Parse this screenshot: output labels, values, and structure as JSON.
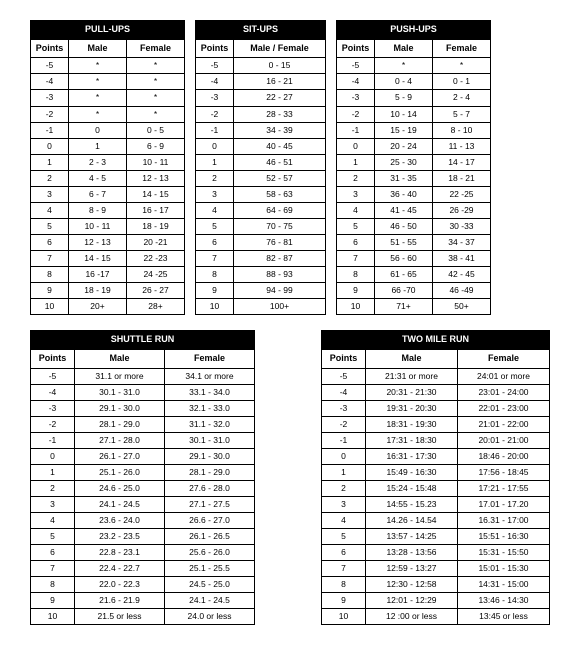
{
  "pullups": {
    "title": "PULL-UPS",
    "cols": [
      "Points",
      "Male",
      "Female"
    ],
    "rows": [
      [
        "-5",
        "*",
        "*"
      ],
      [
        "-4",
        "*",
        "*"
      ],
      [
        "-3",
        "*",
        "*"
      ],
      [
        "-2",
        "*",
        "*"
      ],
      [
        "-1",
        "0",
        "0 - 5"
      ],
      [
        "0",
        "1",
        "6 - 9"
      ],
      [
        "1",
        "2 - 3",
        "10 - 11"
      ],
      [
        "2",
        "4 - 5",
        "12 - 13"
      ],
      [
        "3",
        "6 - 7",
        "14 - 15"
      ],
      [
        "4",
        "8 - 9",
        "16 - 17"
      ],
      [
        "5",
        "10 - 11",
        "18 - 19"
      ],
      [
        "6",
        "12 - 13",
        "20 -21"
      ],
      [
        "7",
        "14 - 15",
        "22 -23"
      ],
      [
        "8",
        "16 -17",
        "24 -25"
      ],
      [
        "9",
        "18 - 19",
        "26 - 27"
      ],
      [
        "10",
        "20+",
        "28+"
      ]
    ]
  },
  "situps": {
    "title": "SIT-UPS",
    "cols": [
      "Points",
      "Male / Female"
    ],
    "rows": [
      [
        "-5",
        "0 - 15"
      ],
      [
        "-4",
        "16 - 21"
      ],
      [
        "-3",
        "22 - 27"
      ],
      [
        "-2",
        "28 - 33"
      ],
      [
        "-1",
        "34 - 39"
      ],
      [
        "0",
        "40 - 45"
      ],
      [
        "1",
        "46 - 51"
      ],
      [
        "2",
        "52 - 57"
      ],
      [
        "3",
        "58 - 63"
      ],
      [
        "4",
        "64 - 69"
      ],
      [
        "5",
        "70 - 75"
      ],
      [
        "6",
        "76 - 81"
      ],
      [
        "7",
        "82 - 87"
      ],
      [
        "8",
        "88 - 93"
      ],
      [
        "9",
        "94 - 99"
      ],
      [
        "10",
        "100+"
      ]
    ]
  },
  "pushups": {
    "title": "PUSH-UPS",
    "cols": [
      "Points",
      "Male",
      "Female"
    ],
    "rows": [
      [
        "-5",
        "*",
        "*"
      ],
      [
        "-4",
        "0 - 4",
        "0 - 1"
      ],
      [
        "-3",
        "5 - 9",
        "2 - 4"
      ],
      [
        "-2",
        "10 - 14",
        "5 - 7"
      ],
      [
        "-1",
        "15 - 19",
        "8 - 10"
      ],
      [
        "0",
        "20 - 24",
        "11 - 13"
      ],
      [
        "1",
        "25 - 30",
        "14 - 17"
      ],
      [
        "2",
        "31 - 35",
        "18 - 21"
      ],
      [
        "3",
        "36 - 40",
        "22 -25"
      ],
      [
        "4",
        "41 - 45",
        "26 -29"
      ],
      [
        "5",
        "46 - 50",
        "30 -33"
      ],
      [
        "6",
        "51 - 55",
        "34 - 37"
      ],
      [
        "7",
        "56 - 60",
        "38 - 41"
      ],
      [
        "8",
        "61 - 65",
        "42 - 45"
      ],
      [
        "9",
        "66 -70",
        "46 -49"
      ],
      [
        "10",
        "71+",
        "50+"
      ]
    ]
  },
  "shuttle": {
    "title": "SHUTTLE RUN",
    "cols": [
      "Points",
      "Male",
      "Female"
    ],
    "rows": [
      [
        "-5",
        "31.1 or more",
        "34.1 or more"
      ],
      [
        "-4",
        "30.1 - 31.0",
        "33.1 - 34.0"
      ],
      [
        "-3",
        "29.1 - 30.0",
        "32.1 - 33.0"
      ],
      [
        "-2",
        "28.1 - 29.0",
        "31.1 - 32.0"
      ],
      [
        "-1",
        "27.1 - 28.0",
        "30.1 - 31.0"
      ],
      [
        "0",
        "26.1 - 27.0",
        "29.1 - 30.0"
      ],
      [
        "1",
        "25.1 - 26.0",
        "28.1 - 29.0"
      ],
      [
        "2",
        "24.6 - 25.0",
        "27.6 - 28.0"
      ],
      [
        "3",
        "24.1 - 24.5",
        "27.1 - 27.5"
      ],
      [
        "4",
        "23.6 - 24.0",
        "26.6 - 27.0"
      ],
      [
        "5",
        "23.2 - 23.5",
        "26.1 - 26.5"
      ],
      [
        "6",
        "22.8 - 23.1",
        "25.6 - 26.0"
      ],
      [
        "7",
        "22.4 - 22.7",
        "25.1 - 25.5"
      ],
      [
        "8",
        "22.0 - 22.3",
        "24.5 - 25.0"
      ],
      [
        "9",
        "21.6 - 21.9",
        "24.1 - 24.5"
      ],
      [
        "10",
        "21.5 or less",
        "24.0 or less"
      ]
    ]
  },
  "twomile": {
    "title": "TWO MILE RUN",
    "cols": [
      "Points",
      "Male",
      "Female"
    ],
    "rows": [
      [
        "-5",
        "21:31 or more",
        "24:01 or more"
      ],
      [
        "-4",
        "20:31 - 21:30",
        "23:01 - 24:00"
      ],
      [
        "-3",
        "19:31 - 20:30",
        "22:01 - 23:00"
      ],
      [
        "-2",
        "18:31 - 19:30",
        "21:01 - 22:00"
      ],
      [
        "-1",
        "17:31 - 18:30",
        "20:01 - 21:00"
      ],
      [
        "0",
        "16:31 - 17:30",
        "18:46 - 20:00"
      ],
      [
        "1",
        "15:49 - 16:30",
        "17:56 - 18:45"
      ],
      [
        "2",
        "15:24 - 15:48",
        "17:21 - 17:55"
      ],
      [
        "3",
        "14:55 - 15.23",
        "17.01 - 17.20"
      ],
      [
        "4",
        "14.26 - 14.54",
        "16.31 - 17:00"
      ],
      [
        "5",
        "13:57 - 14:25",
        "15:51 - 16:30"
      ],
      [
        "6",
        "13:28 - 13:56",
        "15:31 - 15:50"
      ],
      [
        "7",
        "12:59 - 13:27",
        "15:01 - 15:30"
      ],
      [
        "8",
        "12:30 - 12:58",
        "14:31 - 15:00"
      ],
      [
        "9",
        "12:01 - 12:29",
        "13:46 - 14:30"
      ],
      [
        "10",
        "12 :00 or less",
        "13:45 or less"
      ]
    ]
  }
}
